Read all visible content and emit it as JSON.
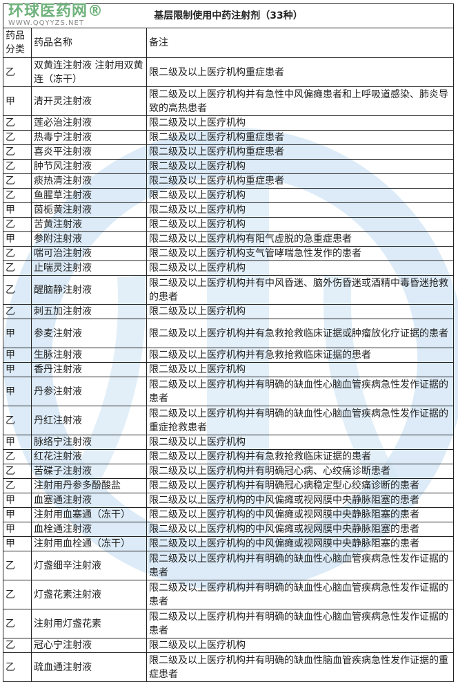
{
  "title": "基层限制使用中药注射剂（33种）",
  "headers": {
    "category": "药品分类",
    "name": "药品名称",
    "note": "备注"
  },
  "rows": [
    {
      "category": "乙",
      "name": "双黄连注射液 注射用双黄连（冻干）",
      "note": "限二级及以上医疗机构重症患者"
    },
    {
      "category": "甲",
      "name": "清开灵注射液",
      "note": "限二级及以上医疗机构并有急性中风偏瘫患者和上呼吸道感染、肺炎导致的高热患者"
    },
    {
      "category": "乙",
      "name": "莲必治注射液",
      "note": "限二级及以上医疗机构"
    },
    {
      "category": "乙",
      "name": "热毒宁注射液",
      "note": "限二级及以上医疗机构重症患者"
    },
    {
      "category": "乙",
      "name": "喜炎平注射液",
      "note": "限二级及以上医疗机构重症患者"
    },
    {
      "category": "乙",
      "name": "肿节风注射液",
      "note": "限二级及以上医疗机构"
    },
    {
      "category": "乙",
      "name": "痰热清注射液",
      "note": "限二级及以上医疗机构重症患者"
    },
    {
      "category": "乙",
      "name": "鱼腥草注射液",
      "note": "限二级及以上医疗机构"
    },
    {
      "category": "甲",
      "name": "茵栀黄注射液",
      "note": "限二级及以上医疗机构"
    },
    {
      "category": "乙",
      "name": "苦黄注射液",
      "note": "限二级及以上医疗机构"
    },
    {
      "category": "甲",
      "name": "参附注射液",
      "note": "限二级及以上医疗机构有阳气虚脱的急重症患者"
    },
    {
      "category": "乙",
      "name": "喘可治注射液",
      "note": "限二级及以上医疗机构支气管哮喘急性发作的患者"
    },
    {
      "category": "乙",
      "name": "止喘灵注射液",
      "note": "限二级及以上医疗机构"
    },
    {
      "category": "乙",
      "name": "醒脑静注射液",
      "note": "限二级及以上医疗机构并有中风昏迷、脑外伤昏迷或酒精中毒昏迷抢救的患者"
    },
    {
      "category": "乙",
      "name": "刺五加注射液",
      "note": "限二级及以上医疗机构"
    },
    {
      "category": "甲",
      "name": "参麦注射液",
      "note": "限二级及以上医疗机构并有急救抢救临床证据或肿瘤放化疗证据的患者"
    },
    {
      "category": "甲",
      "name": "生脉注射液",
      "note": "限二级及以上医疗机构并有急救抢救临床证据的患者"
    },
    {
      "category": "甲",
      "name": "香丹注射液",
      "note": "限二级及以上医疗机构"
    },
    {
      "category": "甲",
      "name": "丹参注射液",
      "note": "限二级及以上医疗机构并有明确的缺血性心脑血管疾病急性发作证据的患者"
    },
    {
      "category": "乙",
      "name": "丹红注射液",
      "note": "限二级及以上医疗机构并有明确的缺血性心脑血管疾病急性发作证据的重症抢救患者"
    },
    {
      "category": "甲",
      "name": "脉络宁注射液",
      "note": "限二级及以上医疗机构"
    },
    {
      "category": "乙",
      "name": "红花注射液",
      "note": "限二级及以上医疗机构并有急救抢救临床证据的患者"
    },
    {
      "category": "乙",
      "name": "苦碟子注射液",
      "note": "限二级及以上医疗机构并有明确冠心病、心绞痛诊断患者"
    },
    {
      "category": "乙",
      "name": "注射用丹参多酚酸盐",
      "note": "限二级及以上医疗机构并有明确冠心病稳定型心绞痛诊断的患者"
    },
    {
      "category": "甲",
      "name": "血塞通注射液",
      "note": "限二级及以上医疗机构的中风偏瘫或视网膜中央静脉阻塞的患者"
    },
    {
      "category": "甲",
      "name": "注射用血塞通（冻干）",
      "note": "限二级及以上医疗机构的中风偏瘫或视网膜中央静脉阻塞的患者"
    },
    {
      "category": "甲",
      "name": "血栓通注射液",
      "note": "限二级及以上医疗机构的中风偏瘫或视网膜中央静脉阻塞的患者"
    },
    {
      "category": "甲",
      "name": "注射用血栓通（冻干）",
      "note": "限二级及以上医疗机构的中风偏瘫或视网膜中央静脉阻塞的患者"
    },
    {
      "category": "乙",
      "name": "灯盏细辛注射液",
      "note": "限二级及以上医疗机构并有明确的缺血性心脑血管疾病急性发作证据的患者"
    },
    {
      "category": "乙",
      "name": "灯盏花素注射液",
      "note": "限二级及以上医疗机构并有明确的缺血性心脑血管疾病急性发作证据的患者"
    },
    {
      "category": "乙",
      "name": "注射用灯盏花素",
      "note": "限二级及以上医疗机构并有明确的缺血性心脑血管疾病急性发作证据的患者"
    },
    {
      "category": "乙",
      "name": "冠心宁注射液",
      "note": "限二级及以上医疗机构"
    },
    {
      "category": "乙",
      "name": "疏血通注射液",
      "note": "限二级及以上医疗机构并有明确的缺血性脑血管疾病急性发作证据的重症患者"
    }
  ],
  "watermark": {
    "logo_cn": "环球医药网®",
    "logo_en": "WWW.QQYYZS.NET",
    "color": "#cfe3f3"
  }
}
